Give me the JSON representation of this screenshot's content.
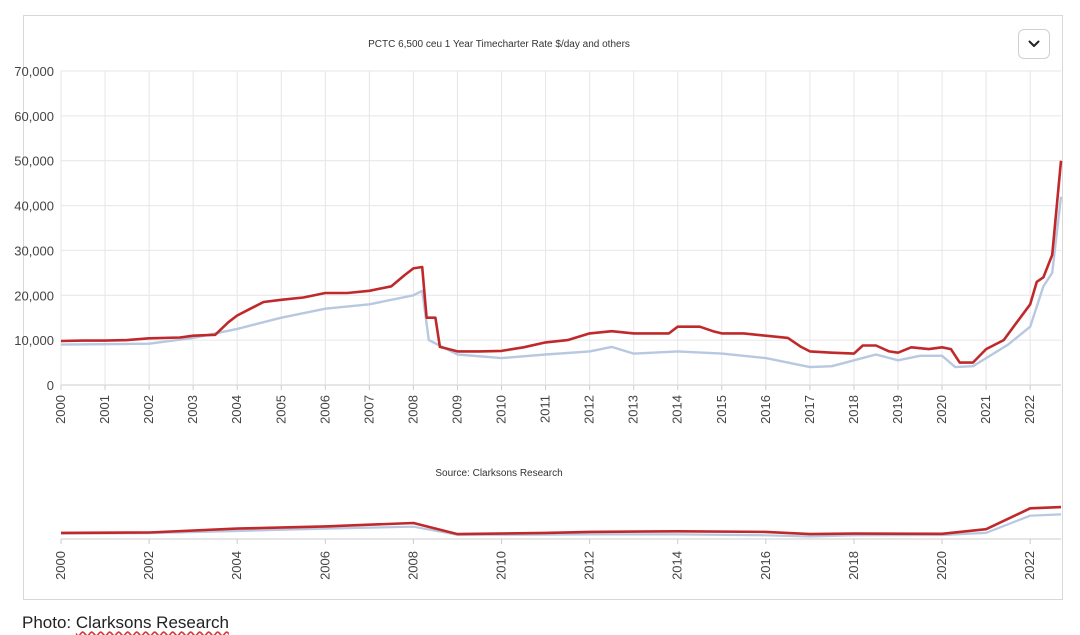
{
  "caption": {
    "prefix": "Photo: ",
    "source": "Clarksons Research"
  },
  "menu": {
    "icon": "chevron-down-icon"
  },
  "colors": {
    "series_main": "#c0292b",
    "series_other": "#b8c8e0",
    "grid": "#e6e6e6",
    "axis": "#cccccc"
  },
  "chart_data": [
    {
      "type": "line",
      "title": "PCTC 6,500 ceu 1 Year Timecharter Rate $/day and others",
      "xlabel": "",
      "ylabel": "",
      "xlim": [
        2000,
        2022.7
      ],
      "ylim": [
        0,
        70000
      ],
      "grid": true,
      "x_ticks": [
        "2000",
        "2001",
        "2002",
        "2003",
        "2004",
        "2005",
        "2006",
        "2007",
        "2008",
        "2009",
        "2010",
        "2011",
        "2012",
        "2013",
        "2014",
        "2015",
        "2016",
        "2017",
        "2018",
        "2019",
        "2020",
        "2021",
        "2022"
      ],
      "y_ticks": [
        "0",
        "10,000",
        "20,000",
        "30,000",
        "40,000",
        "50,000",
        "60,000",
        "70,000"
      ],
      "series": [
        {
          "color": "#c0292b",
          "points": [
            [
              2000,
              9800
            ],
            [
              2000.5,
              9900
            ],
            [
              2001,
              9900
            ],
            [
              2001.5,
              10000
            ],
            [
              2002,
              10400
            ],
            [
              2002.7,
              10600
            ],
            [
              2003,
              11000
            ],
            [
              2003.5,
              11200
            ],
            [
              2003.8,
              14000
            ],
            [
              2004,
              15500
            ],
            [
              2004.3,
              17000
            ],
            [
              2004.6,
              18500
            ],
            [
              2005,
              19000
            ],
            [
              2005.5,
              19500
            ],
            [
              2006,
              20500
            ],
            [
              2006.5,
              20500
            ],
            [
              2007,
              21000
            ],
            [
              2007.5,
              22000
            ],
            [
              2007.8,
              24500
            ],
            [
              2008,
              26000
            ],
            [
              2008.2,
              26300
            ],
            [
              2008.3,
              15000
            ],
            [
              2008.5,
              15000
            ],
            [
              2008.6,
              8500
            ],
            [
              2009,
              7500
            ],
            [
              2009.5,
              7500
            ],
            [
              2010,
              7600
            ],
            [
              2010.5,
              8400
            ],
            [
              2011,
              9500
            ],
            [
              2011.5,
              10000
            ],
            [
              2012,
              11500
            ],
            [
              2012.5,
              12000
            ],
            [
              2013,
              11500
            ],
            [
              2013.8,
              11500
            ],
            [
              2014,
              13000
            ],
            [
              2014.5,
              13000
            ],
            [
              2014.8,
              12000
            ],
            [
              2015,
              11500
            ],
            [
              2015.5,
              11500
            ],
            [
              2016,
              11000
            ],
            [
              2016.5,
              10500
            ],
            [
              2016.8,
              8500
            ],
            [
              2017,
              7500
            ],
            [
              2017.5,
              7200
            ],
            [
              2018,
              7000
            ],
            [
              2018.2,
              8800
            ],
            [
              2018.5,
              8800
            ],
            [
              2018.8,
              7500
            ],
            [
              2019,
              7200
            ],
            [
              2019.3,
              8400
            ],
            [
              2019.7,
              8000
            ],
            [
              2020,
              8400
            ],
            [
              2020.2,
              8000
            ],
            [
              2020.4,
              5000
            ],
            [
              2020.7,
              5000
            ],
            [
              2021,
              8000
            ],
            [
              2021.4,
              10000
            ],
            [
              2021.7,
              14000
            ],
            [
              2022,
              18000
            ],
            [
              2022.15,
              23000
            ],
            [
              2022.3,
              24000
            ],
            [
              2022.5,
              29000
            ],
            [
              2022.7,
              50000
            ]
          ]
        },
        {
          "color": "#b8c8e0",
          "points": [
            [
              2000,
              9000
            ],
            [
              2001,
              9100
            ],
            [
              2002,
              9200
            ],
            [
              2003,
              10500
            ],
            [
              2004,
              12500
            ],
            [
              2005,
              15000
            ],
            [
              2006,
              17000
            ],
            [
              2007,
              18000
            ],
            [
              2008,
              20000
            ],
            [
              2008.2,
              21000
            ],
            [
              2008.35,
              10000
            ],
            [
              2009,
              6800
            ],
            [
              2010,
              6000
            ],
            [
              2011,
              6800
            ],
            [
              2012,
              7500
            ],
            [
              2012.5,
              8500
            ],
            [
              2013,
              7000
            ],
            [
              2014,
              7500
            ],
            [
              2015,
              7000
            ],
            [
              2016,
              6000
            ],
            [
              2017,
              4000
            ],
            [
              2017.5,
              4200
            ],
            [
              2018,
              5500
            ],
            [
              2018.5,
              6800
            ],
            [
              2019,
              5500
            ],
            [
              2019.5,
              6500
            ],
            [
              2020,
              6500
            ],
            [
              2020.3,
              4000
            ],
            [
              2020.7,
              4200
            ],
            [
              2021,
              6000
            ],
            [
              2021.5,
              9000
            ],
            [
              2022,
              13000
            ],
            [
              2022.3,
              22000
            ],
            [
              2022.5,
              25000
            ],
            [
              2022.7,
              42000
            ]
          ]
        }
      ]
    },
    {
      "type": "line",
      "title": "Source: Clarksons Research",
      "xlabel": "",
      "ylabel": "",
      "xlim": [
        2000,
        2022.7
      ],
      "ylim": [
        0,
        70000
      ],
      "grid": false,
      "x_ticks": [
        "2000",
        "2002",
        "2004",
        "2006",
        "2008",
        "2010",
        "2012",
        "2014",
        "2016",
        "2018",
        "2020",
        "2022"
      ],
      "series": [
        {
          "color": "#c0292b",
          "points": [
            [
              2000,
              10000
            ],
            [
              2002,
              10500
            ],
            [
              2004,
              17000
            ],
            [
              2006,
              20500
            ],
            [
              2008,
              26000
            ],
            [
              2009,
              8000
            ],
            [
              2011,
              10000
            ],
            [
              2012,
              11500
            ],
            [
              2014,
              12500
            ],
            [
              2016,
              11500
            ],
            [
              2017,
              8000
            ],
            [
              2018,
              8800
            ],
            [
              2020,
              8500
            ],
            [
              2021,
              16000
            ],
            [
              2022,
              50000
            ],
            [
              2022.7,
              52000
            ]
          ]
        },
        {
          "color": "#b8c8e0",
          "points": [
            [
              2000,
              9000
            ],
            [
              2002,
              9500
            ],
            [
              2004,
              13000
            ],
            [
              2006,
              17000
            ],
            [
              2008,
              20000
            ],
            [
              2009,
              6800
            ],
            [
              2011,
              7000
            ],
            [
              2012,
              7500
            ],
            [
              2014,
              7500
            ],
            [
              2016,
              6000
            ],
            [
              2017,
              4000
            ],
            [
              2018,
              6000
            ],
            [
              2020,
              6500
            ],
            [
              2021,
              10000
            ],
            [
              2022,
              38000
            ],
            [
              2022.7,
              40000
            ]
          ]
        }
      ]
    }
  ]
}
